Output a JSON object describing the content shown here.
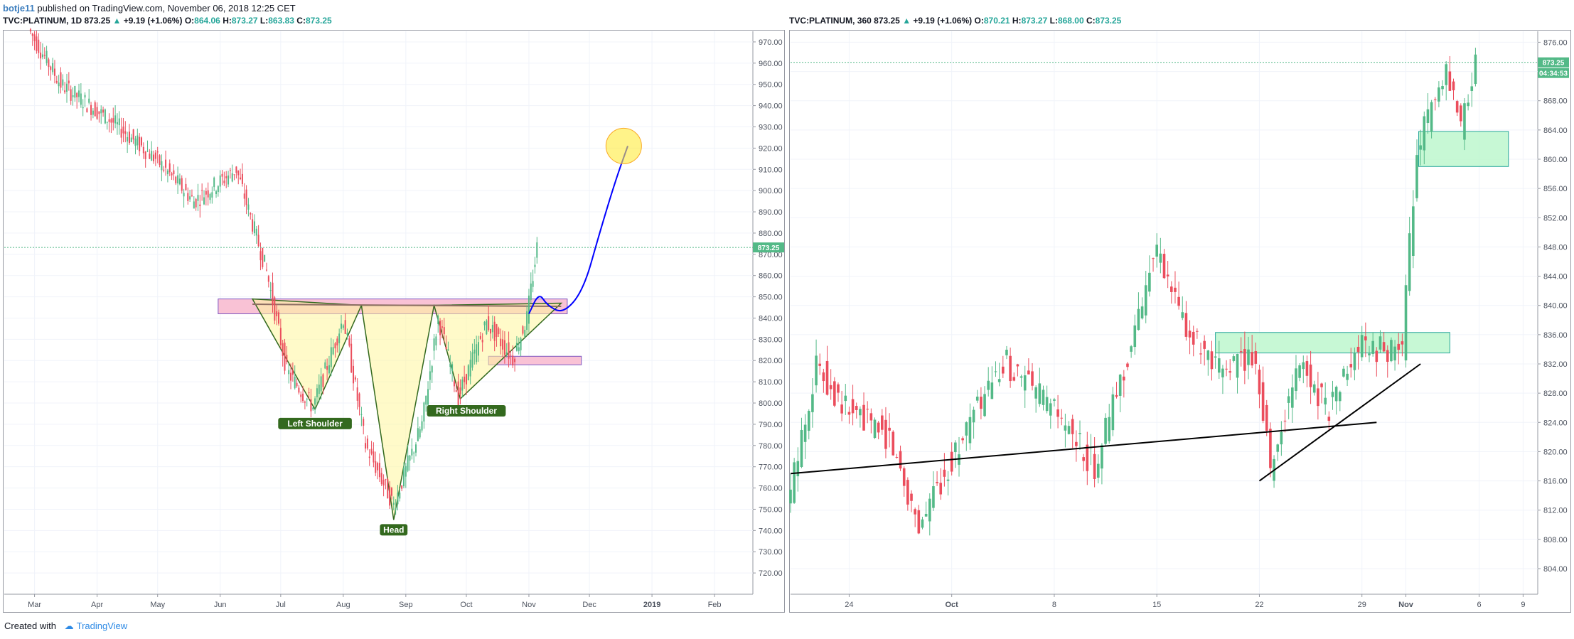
{
  "header": {
    "user": "botje11",
    "published_text": "published on TradingView.com, November 06, 2018 12:25 CET"
  },
  "footer": {
    "created_with": "Created with",
    "brand": "TradingView"
  },
  "colors": {
    "up": "#53b987",
    "down": "#eb4d5c",
    "grid": "#f0f3fa",
    "price_line": "#53b987",
    "projection": "#0000ff",
    "target_circle": "#ffeb3b",
    "pattern_fill": "#fff59d",
    "resistance_zone": "#f8bbd0",
    "support_zone": "#b9f6ca",
    "label_bg": "#33691e"
  },
  "chart_data": [
    {
      "type": "candlestick",
      "symbol_label": "TVC:PLATINUM, 1D",
      "last": "873.25",
      "change": "+9.19 (+1.06%)",
      "ohlc": {
        "O": "864.06",
        "H": "873.27",
        "L": "863.83",
        "C": "873.25"
      },
      "price_tag": "873.25",
      "ylim": [
        710,
        975
      ],
      "y_ticks": [
        "970.00",
        "960.00",
        "950.00",
        "940.00",
        "930.00",
        "920.00",
        "910.00",
        "900.00",
        "890.00",
        "880.00",
        "870.00",
        "860.00",
        "850.00",
        "840.00",
        "830.00",
        "820.00",
        "810.00",
        "800.00",
        "790.00",
        "780.00",
        "770.00",
        "760.00",
        "750.00",
        "740.00",
        "730.00",
        "720.00"
      ],
      "x_ticks": [
        "Mar",
        "Apr",
        "May",
        "Jun",
        "Jul",
        "Aug",
        "Sep",
        "Oct",
        "Nov",
        "Dec",
        "2019",
        "Feb"
      ],
      "annotations": [
        "Left Shoulder",
        "Head",
        "Right Shoulder"
      ],
      "pattern": "inverse head and shoulders",
      "neckline": [
        850,
        846
      ],
      "resistance_zone": [
        842,
        849
      ],
      "support_zone": [
        818,
        822
      ],
      "projection_target": 921,
      "key_points": [
        {
          "date": "2018-02-27",
          "price": 976
        },
        {
          "date": "2018-03-15",
          "price": 950
        },
        {
          "date": "2018-04-10",
          "price": 932
        },
        {
          "date": "2018-05-01",
          "price": 915
        },
        {
          "date": "2018-05-20",
          "price": 895
        },
        {
          "date": "2018-06-10",
          "price": 910
        },
        {
          "date": "2018-06-25",
          "price": 862
        },
        {
          "date": "2018-07-05",
          "price": 815
        },
        {
          "date": "2018-07-18",
          "price": 798
        },
        {
          "date": "2018-08-02",
          "price": 840
        },
        {
          "date": "2018-08-13",
          "price": 780
        },
        {
          "date": "2018-08-27",
          "price": 752
        },
        {
          "date": "2018-09-10",
          "price": 790
        },
        {
          "date": "2018-09-18",
          "price": 840
        },
        {
          "date": "2018-09-28",
          "price": 803
        },
        {
          "date": "2018-10-12",
          "price": 838
        },
        {
          "date": "2018-10-25",
          "price": 821
        },
        {
          "date": "2018-11-01",
          "price": 840
        },
        {
          "date": "2018-11-06",
          "price": 873.25
        }
      ]
    },
    {
      "type": "candlestick",
      "symbol_label": "TVC:PLATINUM, 360",
      "last": "873.25",
      "change": "+9.19 (+1.06%)",
      "ohlc": {
        "O": "870.21",
        "H": "873.27",
        "L": "868.00",
        "C": "873.25"
      },
      "price_tag": "873.25",
      "countdown_tag": "04:34:53",
      "ylim": [
        800.5,
        877.5
      ],
      "y_ticks": [
        "876.00",
        "872.00",
        "868.00",
        "864.00",
        "860.00",
        "856.00",
        "852.00",
        "848.00",
        "844.00",
        "840.00",
        "836.00",
        "832.00",
        "828.00",
        "824.00",
        "820.00",
        "816.00",
        "812.00",
        "808.00",
        "804.00"
      ],
      "x_ticks": [
        "24",
        "Oct",
        "8",
        "15",
        "22",
        "29",
        "Nov",
        "6",
        "9"
      ],
      "support_zones": [
        [
          833.5,
          836.3
        ],
        [
          859,
          863.8
        ]
      ],
      "trendlines": [
        {
          "from": {
            "date": "2018-09-20",
            "price": 817
          },
          "to": {
            "date": "2018-10-30",
            "price": 824
          }
        },
        {
          "from": {
            "date": "2018-10-22",
            "price": 816
          },
          "to": {
            "date": "2018-11-02",
            "price": 832
          }
        }
      ],
      "key_points": [
        {
          "date": "2018-09-20",
          "price": 812
        },
        {
          "date": "2018-09-22",
          "price": 832
        },
        {
          "date": "2018-09-24",
          "price": 826
        },
        {
          "date": "2018-09-27",
          "price": 822
        },
        {
          "date": "2018-09-29",
          "price": 810
        },
        {
          "date": "2018-10-03",
          "price": 826
        },
        {
          "date": "2018-10-05",
          "price": 832
        },
        {
          "date": "2018-10-08",
          "price": 826
        },
        {
          "date": "2018-10-11",
          "price": 818
        },
        {
          "date": "2018-10-14",
          "price": 838
        },
        {
          "date": "2018-10-15",
          "price": 848
        },
        {
          "date": "2018-10-17",
          "price": 838
        },
        {
          "date": "2018-10-19",
          "price": 831
        },
        {
          "date": "2018-10-22",
          "price": 833
        },
        {
          "date": "2018-10-23",
          "price": 818
        },
        {
          "date": "2018-10-25",
          "price": 832
        },
        {
          "date": "2018-10-27",
          "price": 826
        },
        {
          "date": "2018-10-29",
          "price": 834
        },
        {
          "date": "2018-11-01",
          "price": 834
        },
        {
          "date": "2018-11-02",
          "price": 862
        },
        {
          "date": "2018-11-04",
          "price": 871
        },
        {
          "date": "2018-11-05",
          "price": 864
        },
        {
          "date": "2018-11-06",
          "price": 873.25
        }
      ]
    }
  ]
}
